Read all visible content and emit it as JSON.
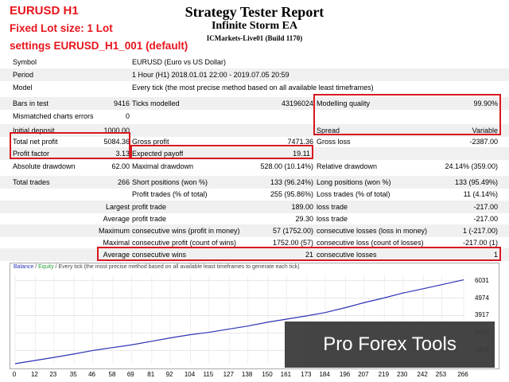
{
  "overlay": {
    "line1": "EURUSD H1",
    "line2": "Fixed Lot size: 1 Lot",
    "line3": "settings EURUSD_H1_001 (default)"
  },
  "header": {
    "title": "Strategy Tester Report",
    "ea": "Infinite Storm EA",
    "server": "ICMarkets-Live01 (Build 1170)"
  },
  "info": {
    "symbol_label": "Symbol",
    "symbol_value": "EURUSD (Euro vs US Dollar)",
    "period_label": "Period",
    "period_value": "1 Hour (H1) 2018.01.01 22:00 - 2019.07.05 20:59",
    "model_label": "Model",
    "model_value": "Every tick (the most precise method based on all available least timeframes)"
  },
  "stats": {
    "bars_label": "Bars in test",
    "bars_value": "9416",
    "ticks_label": "Ticks modelled",
    "ticks_value": "43196024",
    "quality_label": "Modelling quality",
    "quality_value": "99.90%",
    "mismatch_label": "Mismatched charts errors",
    "mismatch_value": "0",
    "deposit_label": "Initial deposit",
    "deposit_value": "1000.00",
    "spread_label": "Spread",
    "spread_value": "Variable",
    "netprofit_label": "Total net profit",
    "netprofit_value": "5084.36",
    "grossprofit_label": "Gross profit",
    "grossprofit_value": "7471.36",
    "grossloss_label": "Gross loss",
    "grossloss_value": "-2387.00",
    "pf_label": "Profit factor",
    "pf_value": "3.13",
    "ep_label": "Expected payoff",
    "ep_value": "19.11",
    "absdd_label": "Absolute drawdown",
    "absdd_value": "62.00",
    "maxdd_label": "Maximal drawdown",
    "maxdd_value": "528.00 (10.14%)",
    "reldd_label": "Relative drawdown",
    "reldd_value": "24.14% (359.00)",
    "trades_label": "Total trades",
    "trades_value": "266",
    "short_label": "Short positions (won %)",
    "short_value": "133 (96.24%)",
    "long_label": "Long positions (won %)",
    "long_value": "133 (95.49%)",
    "pt_label": "Profit trades (% of total)",
    "pt_value": "255 (95.86%)",
    "lt_label": "Loss trades (% of total)",
    "lt_value": "11 (4.14%)",
    "largest_label": "Largest",
    "largest_pt_label": "profit trade",
    "largest_pt_value": "189.00",
    "largest_lt_label": "loss trade",
    "largest_lt_value": "-217.00",
    "average_label": "Average",
    "average_pt_label": "profit trade",
    "average_pt_value": "29.30",
    "average_lt_label": "loss trade",
    "average_lt_value": "-217.00",
    "maximum_label": "Maximum",
    "maxcw_label": "consecutive wins (profit in money)",
    "maxcw_value": "57 (1752.00)",
    "maxcl_label": "consecutive losses (loss in money)",
    "maxcl_value": "1 (-217.00)",
    "maximal_label": "Maximal",
    "maxcp_label": "consecutive profit (count of wins)",
    "maxcp_value": "1752.00 (57)",
    "maxcloss_label": "consecutive loss (count of losses)",
    "maxcloss_value": "-217.00 (1)",
    "avg2_label": "Average",
    "avgcw_label": "consecutive wins",
    "avgcw_value": "21",
    "avgcl_label": "consecutive losses",
    "avgcl_value": "1"
  },
  "chart_data": {
    "type": "line",
    "legend_balance": "Balance",
    "legend_sep": " / ",
    "legend_equity": "Equity",
    "legend_rest": " / Every tick (the most precise method based on all available least timeframes to generate each tick)",
    "x_ticks": [
      "0",
      "12",
      "23",
      "35",
      "46",
      "58",
      "69",
      "81",
      "92",
      "104",
      "115",
      "127",
      "138",
      "150",
      "161",
      "173",
      "184",
      "196",
      "207",
      "219",
      "230",
      "242",
      "253",
      "266"
    ],
    "y_ticks": [
      "6031",
      "4974",
      "3917",
      "2860",
      "1803"
    ],
    "ylim": [
      1000,
      6400
    ],
    "xlim": [
      0,
      266
    ],
    "series": [
      {
        "name": "Balance",
        "color": "#2a33b5",
        "x": [
          0,
          12,
          23,
          35,
          46,
          58,
          69,
          81,
          92,
          104,
          115,
          127,
          138,
          150,
          161,
          173,
          184,
          196,
          207,
          219,
          230,
          242,
          253,
          266
        ],
        "values": [
          1000,
          1200,
          1380,
          1590,
          1800,
          1980,
          2140,
          2360,
          2560,
          2760,
          2900,
          3100,
          3280,
          3520,
          3700,
          3900,
          4100,
          4400,
          4700,
          4990,
          5280,
          5540,
          5790,
          6084
        ]
      }
    ]
  },
  "watermark": "Pro Forex Tools"
}
